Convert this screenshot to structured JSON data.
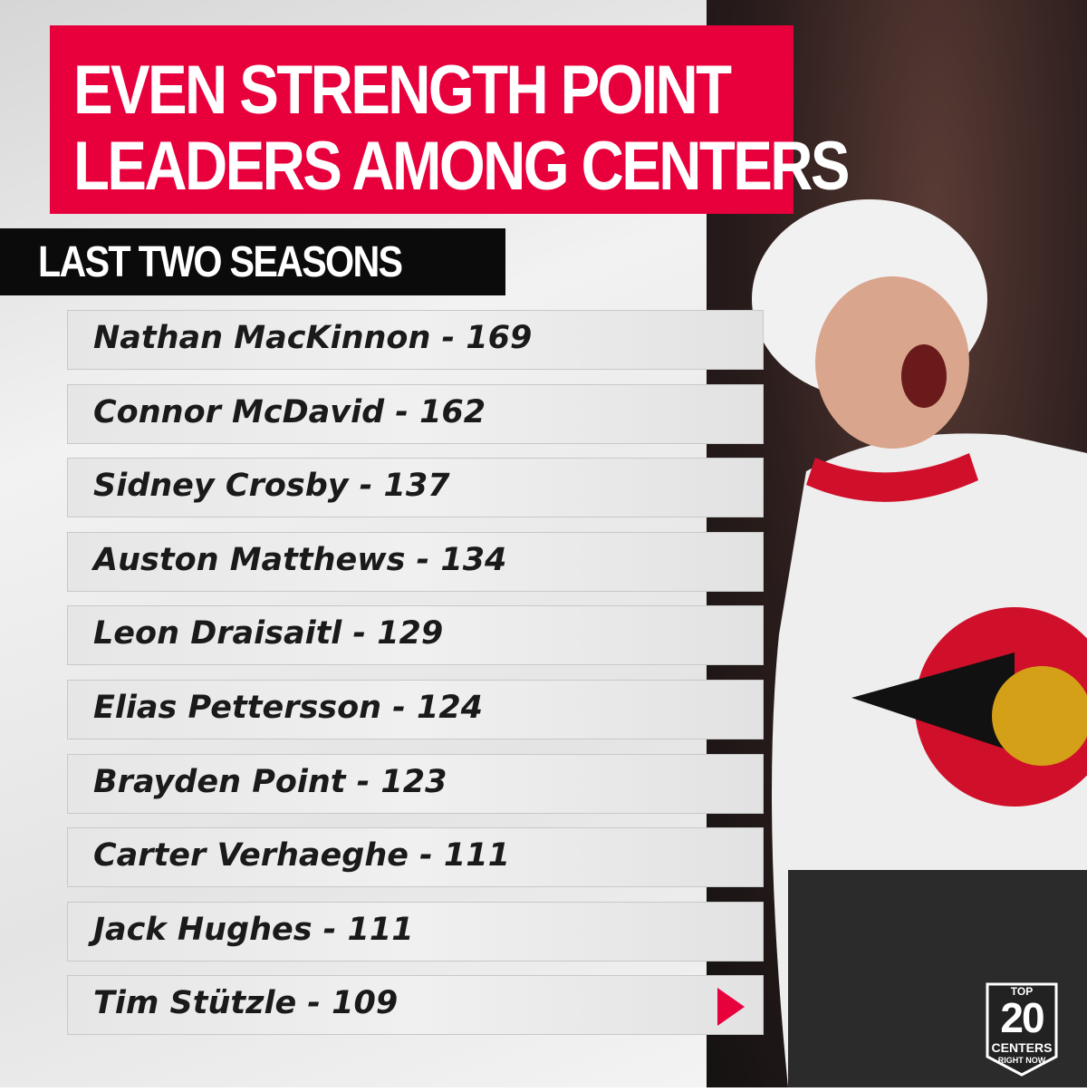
{
  "header": {
    "title": [
      "EVEN STRENGTH POINT",
      "LEADERS AMONG CENTERS"
    ],
    "subtitle": "LAST TWO SEASONS"
  },
  "list": {
    "rows": [
      "Nathan MacKinnon - 169",
      "Connor McDavid - 162",
      "Sidney Crosby - 137",
      "Auston Matthews - 134",
      "Leon Draisaitl - 129",
      "Elias Pettersson - 124",
      "Brayden Point - 123",
      "Carter Verhaeghe - 111",
      "Jack Hughes - 111",
      "Tim Stützle - 109"
    ]
  },
  "badge": {
    "top": "TOP",
    "number": "20",
    "label": "CENTERS",
    "sub": "RIGHT NOW"
  }
}
